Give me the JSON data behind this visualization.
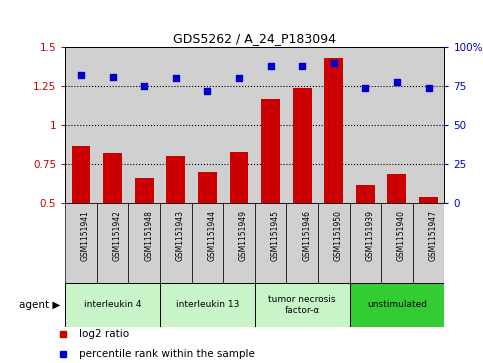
{
  "title": "GDS5262 / A_24_P183094",
  "samples": [
    "GSM1151941",
    "GSM1151942",
    "GSM1151948",
    "GSM1151943",
    "GSM1151944",
    "GSM1151949",
    "GSM1151945",
    "GSM1151946",
    "GSM1151950",
    "GSM1151939",
    "GSM1151940",
    "GSM1151947"
  ],
  "log2_ratio": [
    0.87,
    0.82,
    0.66,
    0.8,
    0.7,
    0.83,
    1.17,
    1.24,
    1.43,
    0.62,
    0.69,
    0.54
  ],
  "percentile_rank": [
    82,
    81,
    75,
    80,
    72,
    80,
    88,
    88,
    90,
    74,
    78,
    74
  ],
  "agents": [
    {
      "label": "interleukin 4",
      "span": [
        0,
        3
      ],
      "color": "#c8f5c8"
    },
    {
      "label": "interleukin 13",
      "span": [
        3,
        6
      ],
      "color": "#c8f5c8"
    },
    {
      "label": "tumor necrosis\nfactor-α",
      "span": [
        6,
        9
      ],
      "color": "#c8f5c8"
    },
    {
      "label": "unstimulated",
      "span": [
        9,
        12
      ],
      "color": "#33cc33"
    }
  ],
  "bar_color": "#cc0000",
  "dot_color": "#0000cc",
  "ylim_left": [
    0.5,
    1.5
  ],
  "ylim_right": [
    0,
    100
  ],
  "yticks_left": [
    0.5,
    0.75,
    1.0,
    1.25,
    1.5
  ],
  "ytick_labels_left": [
    "0.5",
    "0.75",
    "1",
    "1.25",
    "1.5"
  ],
  "yticks_right": [
    0,
    25,
    50,
    75,
    100
  ],
  "ytick_labels_right": [
    "0",
    "25",
    "50",
    "75",
    "100%"
  ],
  "hlines": [
    0.75,
    1.0,
    1.25
  ],
  "legend_items": [
    {
      "label": "log2 ratio",
      "color": "#cc0000"
    },
    {
      "label": "percentile rank within the sample",
      "color": "#0000cc"
    }
  ],
  "agent_label": "agent",
  "sample_box_color": "#d0d0d0",
  "bg_color": "#ffffff",
  "figsize": [
    4.83,
    3.63
  ],
  "dpi": 100
}
